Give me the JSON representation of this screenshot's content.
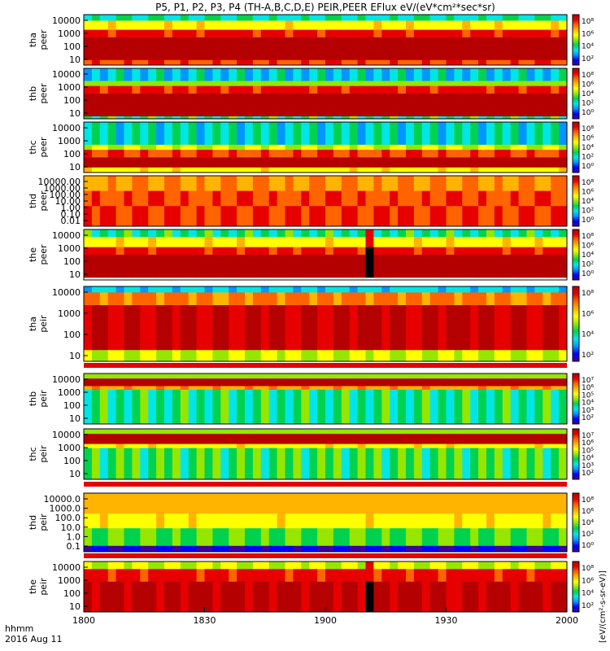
{
  "title": "P5, P1, P2, P3, P4 (TH-A,B,C,D,E) PEIR,PEER EFlux eV/(eV*cm²*sec*sr)",
  "colorbar_title": "[eV/(cm²-s-sr-eV)]",
  "time_label_line1": "hhmm",
  "time_label_line2": "2016 Aug 11",
  "colormap": [
    "#3c00a0",
    "#0000ff",
    "#0096ff",
    "#00e6e6",
    "#00d250",
    "#96e600",
    "#ffff00",
    "#ffb400",
    "#ff6400",
    "#e60000",
    "#b40000"
  ],
  "chart_data": [
    {
      "type": "heatmap",
      "probe": "tha",
      "species": "peer",
      "ylabel": [
        "tha",
        "peer"
      ],
      "y_ticks": [
        "10000",
        "1000",
        "100",
        "10"
      ],
      "cbar_ticks": [
        "10⁸",
        "10⁶",
        "10⁴",
        "10²"
      ],
      "x_ticks": [
        "1800",
        "1830",
        "1900",
        "1930",
        "2000"
      ]
    },
    {
      "type": "heatmap",
      "probe": "thb",
      "species": "peer",
      "ylabel": [
        "thb",
        "peer"
      ],
      "y_ticks": [
        "10000",
        "1000",
        "100",
        "10"
      ],
      "cbar_ticks": [
        "10⁸",
        "10⁶",
        "10⁴",
        "10²",
        "10⁰"
      ]
    },
    {
      "type": "heatmap",
      "probe": "thc",
      "species": "peer",
      "ylabel": [
        "thc",
        "peer"
      ],
      "y_ticks": [
        "10000",
        "1000",
        "100",
        "10"
      ],
      "cbar_ticks": [
        "10⁸",
        "10⁶",
        "10⁴",
        "10²",
        "10⁰"
      ]
    },
    {
      "type": "heatmap",
      "probe": "thd",
      "species": "peer",
      "ylabel": [
        "thd",
        "peer"
      ],
      "y_ticks": [
        "10000.00",
        "1000.00",
        "100.00",
        "10.00",
        "1.00",
        "0.10",
        "0.01"
      ],
      "cbar_ticks": [
        "10⁸",
        "10⁶",
        "10⁴",
        "10²",
        "10⁰"
      ]
    },
    {
      "type": "heatmap",
      "probe": "the",
      "species": "peer",
      "ylabel": [
        "the",
        "peer"
      ],
      "y_ticks": [
        "10000",
        "1000",
        "100",
        "10"
      ],
      "cbar_ticks": [
        "10⁸",
        "10⁶",
        "10⁴",
        "10²",
        "10⁰"
      ]
    },
    {
      "type": "heatmap",
      "probe": "tha",
      "species": "peir",
      "ylabel": [
        "tha",
        "peir"
      ],
      "y_ticks": [
        "10000",
        "1000",
        "100",
        "10"
      ],
      "cbar_ticks": [
        "10⁸",
        "10⁶",
        "10⁴",
        "10²"
      ]
    },
    {
      "type": "heatmap",
      "probe": "thb",
      "species": "peir",
      "ylabel": [
        "thb",
        "peir"
      ],
      "y_ticks": [
        "10000",
        "1000",
        "100",
        "10"
      ],
      "cbar_ticks": [
        "10⁷",
        "10⁶",
        "10⁵",
        "10⁴",
        "10³",
        "10²"
      ]
    },
    {
      "type": "heatmap",
      "probe": "thc",
      "species": "peir",
      "ylabel": [
        "thc",
        "peir"
      ],
      "y_ticks": [
        "10000",
        "1000",
        "100",
        "10"
      ],
      "cbar_ticks": [
        "10⁷",
        "10⁶",
        "10⁵",
        "10⁴",
        "10³",
        "10²"
      ]
    },
    {
      "type": "heatmap",
      "probe": "thd",
      "species": "peir",
      "ylabel": [
        "thd",
        "peir"
      ],
      "y_ticks": [
        "10000.0",
        "1000.0",
        "100.0",
        "10.0",
        "1.0",
        "0.1"
      ],
      "cbar_ticks": [
        "10⁸",
        "10⁶",
        "10⁴",
        "10²",
        "10⁰"
      ]
    },
    {
      "type": "heatmap",
      "probe": "the",
      "species": "peir",
      "ylabel": [
        "the",
        "peir"
      ],
      "y_ticks": [
        "10000",
        "1000",
        "100",
        "10"
      ],
      "cbar_ticks": [
        "10⁸",
        "10⁶",
        "10⁴",
        "10²"
      ]
    }
  ]
}
